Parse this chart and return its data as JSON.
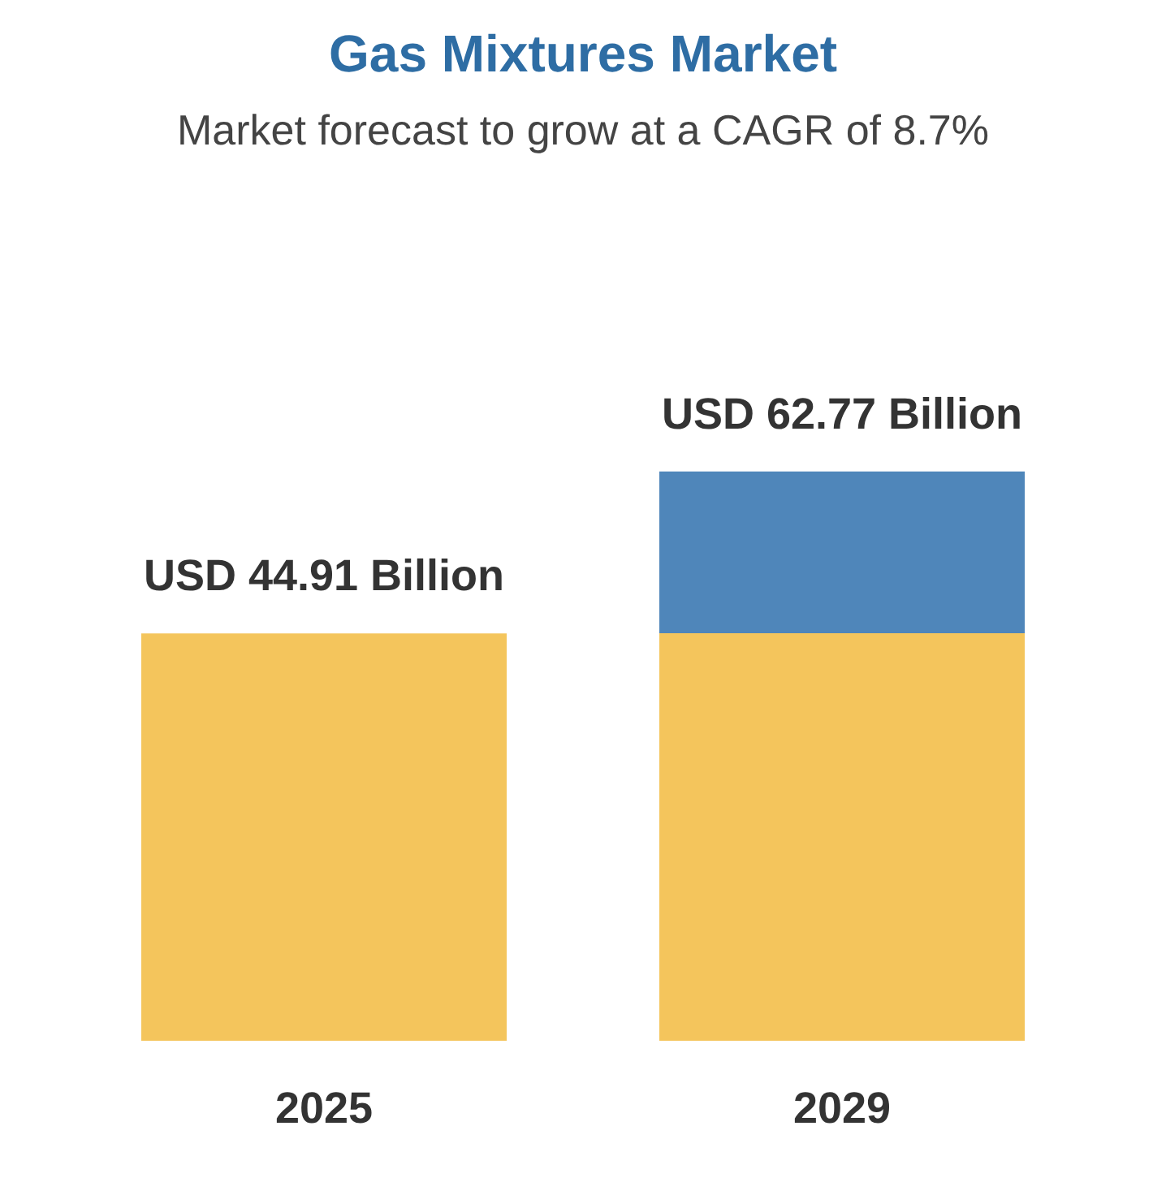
{
  "chart_data": {
    "type": "bar",
    "title": "Gas Mixtures Market",
    "subtitle": "Market forecast to grow at a CAGR of 8.7%",
    "categories": [
      "2025",
      "2029"
    ],
    "values": [
      44.91,
      62.77
    ],
    "colors": [
      "#f4c55c",
      "#4f86ba"
    ],
    "value_labels": [
      "USD 44.91 Billion",
      "USD 62.77 Billion"
    ]
  }
}
